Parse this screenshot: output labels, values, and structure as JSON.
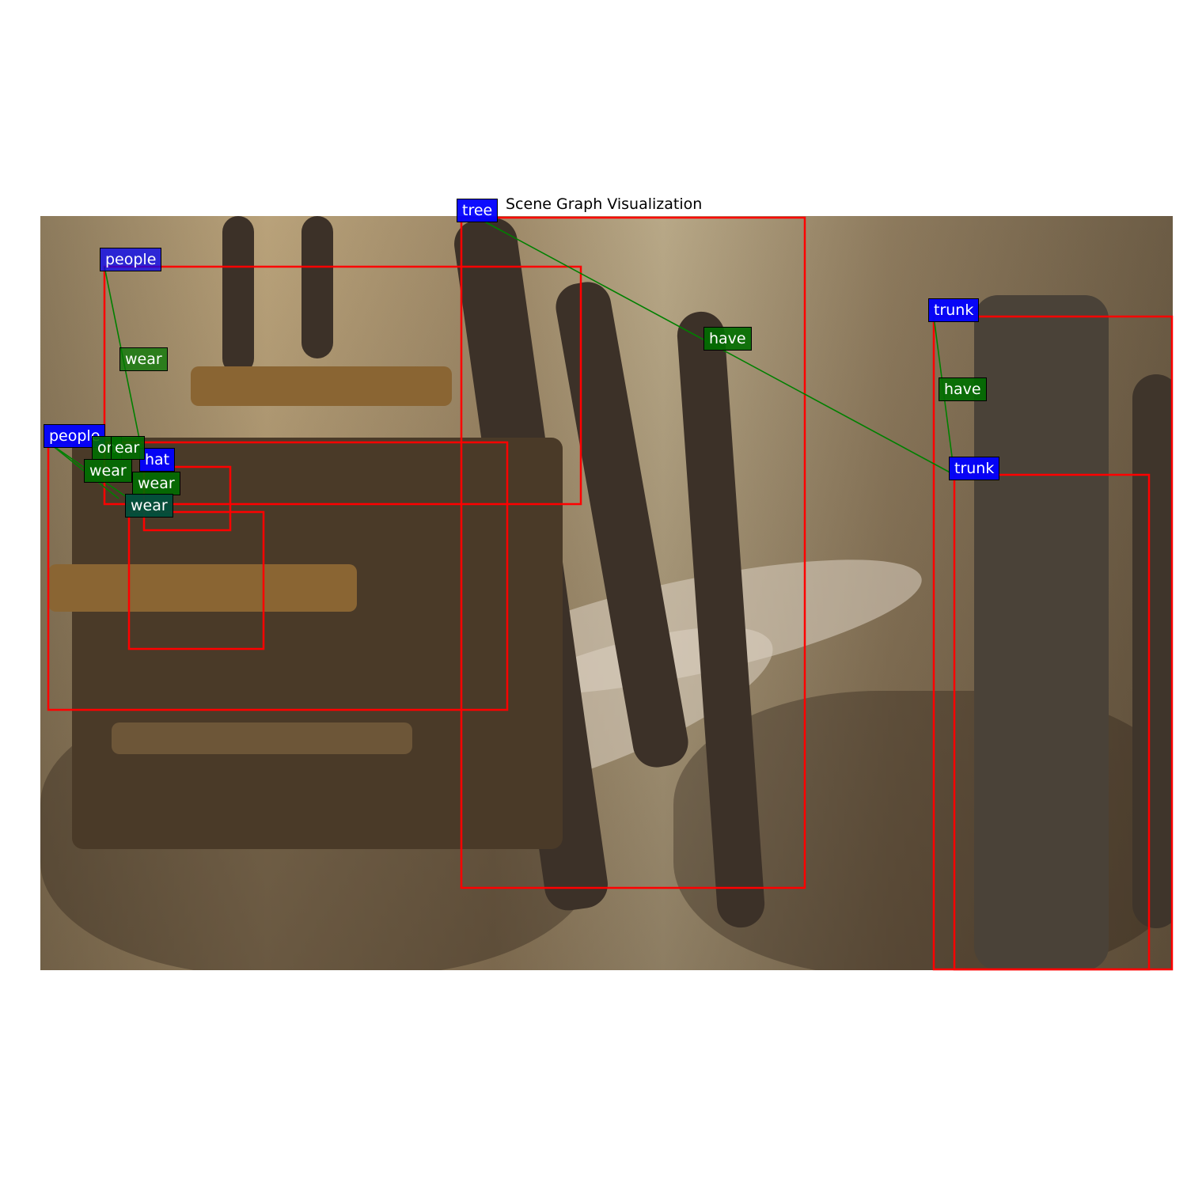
{
  "title": "Scene Graph Visualization",
  "colors": {
    "box": "#ff0000",
    "edge": "#008000",
    "object_label": "#0000ff",
    "relation_label": "#007a00"
  },
  "objects": [
    {
      "id": "tree",
      "label": "tree"
    },
    {
      "id": "people1",
      "label": "people"
    },
    {
      "id": "people2",
      "label": "people"
    },
    {
      "id": "hat",
      "label": "hat"
    },
    {
      "id": "trunk1",
      "label": "trunk"
    },
    {
      "id": "trunk2",
      "label": "trunk"
    }
  ],
  "relations": [
    {
      "id": "r1",
      "label": "wear"
    },
    {
      "id": "r2",
      "label": "on"
    },
    {
      "id": "r3",
      "label": "ear"
    },
    {
      "id": "r4",
      "label": "wear"
    },
    {
      "id": "r5",
      "label": "wear"
    },
    {
      "id": "r6",
      "label": "wear"
    },
    {
      "id": "r7",
      "label": "have"
    },
    {
      "id": "r8",
      "label": "have"
    }
  ]
}
